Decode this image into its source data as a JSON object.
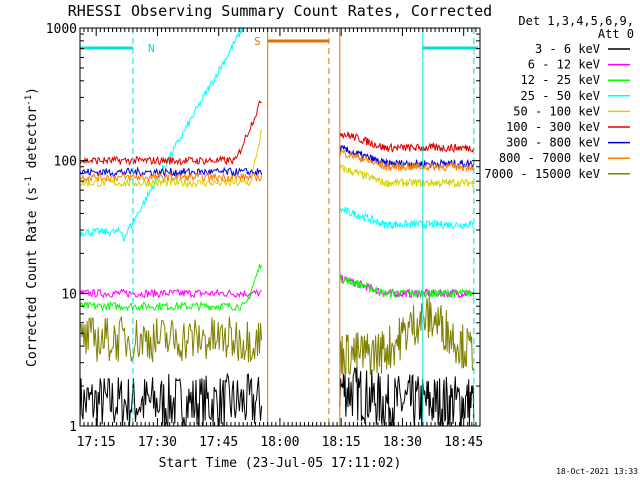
{
  "chart_data": {
    "type": "line",
    "title": "RHESSI Observing Summary Count Rates, Corrected",
    "xlabel": "Start Time (23-Jul-05 17:11:02)",
    "ylabel_main": "Corrected Count Rate (s",
    "ylabel_sup1": "-1",
    "ylabel_mid": " detector",
    "ylabel_sup2": "-1",
    "ylabel_end": ")",
    "yscale": "log",
    "ylim": [
      1,
      1000
    ],
    "xlim_minutes": [
      "17:11:02",
      "18:49:00"
    ],
    "x_ticks": [
      "17:15",
      "17:30",
      "17:45",
      "18:00",
      "18:15",
      "18:30",
      "18:45"
    ],
    "y_ticks": [
      "1",
      "10",
      "100",
      "1000"
    ],
    "grid": false,
    "legend_placement": "right",
    "legend_header": [
      "Det 1,3,4,5,6,9,",
      "Att 0"
    ],
    "series": [
      {
        "name": "3 - 6 keV",
        "color": "#000000"
      },
      {
        "name": "6 - 12 keV",
        "color": "#ff00ff"
      },
      {
        "name": "12 - 25 keV",
        "color": "#00ff00"
      },
      {
        "name": "25 - 50 keV",
        "color": "#00ffff"
      },
      {
        "name": "50 - 100 keV",
        "color": "#d4d400"
      },
      {
        "name": "100 - 300 keV",
        "color": "#e00000"
      },
      {
        "name": "300 - 800 keV",
        "color": "#0000dd"
      },
      {
        "name": "800 - 7000 keV",
        "color": "#ff8000"
      },
      {
        "name": "7000 - 15000 keV",
        "color": "#808000"
      }
    ],
    "data_segments": [
      {
        "start": "17:11:02",
        "end": "17:55:30"
      },
      {
        "start": "18:14:40",
        "end": "18:47:30"
      }
    ],
    "series_levels": {
      "3 - 6 keV": [
        1.5,
        1.5
      ],
      "6 - 12 keV": [
        10,
        10
      ],
      "12 - 25 keV": [
        8,
        10
      ],
      "25 - 50 keV": [
        29,
        33
      ],
      "50 - 100 keV": [
        68,
        68
      ],
      "100 - 300 keV": [
        100,
        125
      ],
      "300 - 800 keV": [
        82,
        95
      ],
      "800 - 7000 keV": [
        75,
        90
      ],
      "7000 - 15000 keV": [
        4.5,
        4.5
      ]
    },
    "annotations": [
      {
        "label": "N",
        "type": "night",
        "color": "#00e0e0"
      },
      {
        "label": "S",
        "type": "saa",
        "color": "#e07000"
      }
    ],
    "footer_date": "18-Oct-2021 13:33"
  }
}
